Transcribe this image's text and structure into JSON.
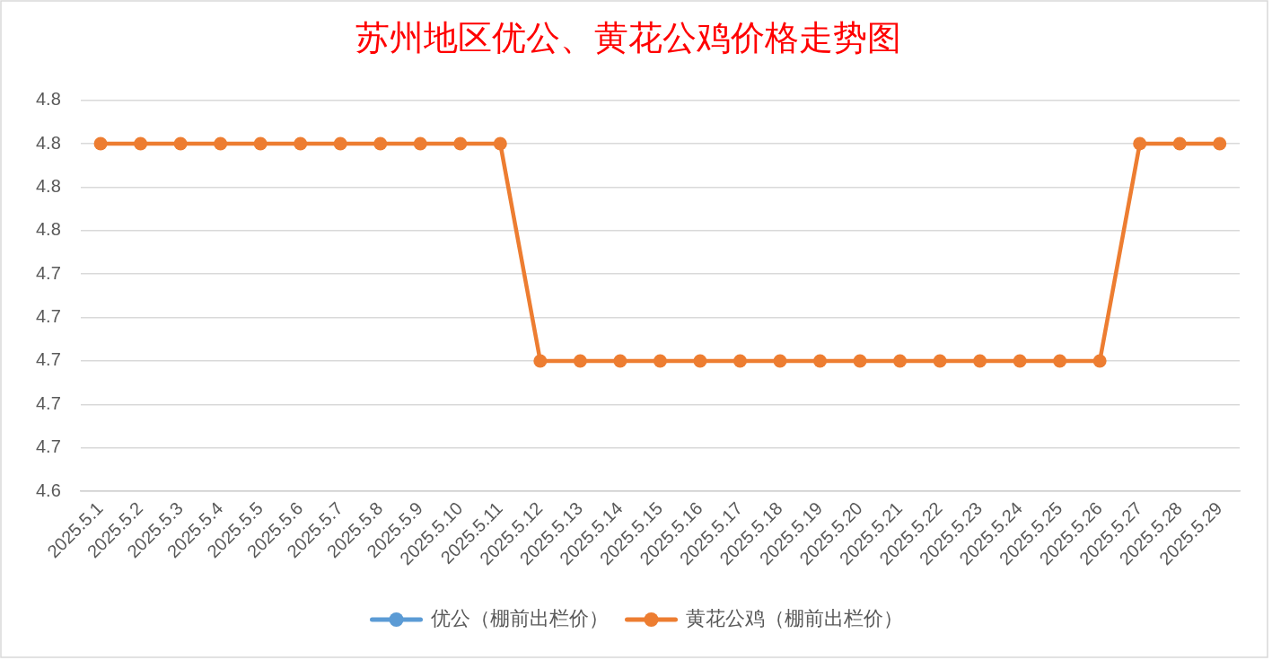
{
  "chart_data": {
    "type": "line",
    "title": "苏州地区优公、黄花公鸡价格走势图",
    "categories": [
      "2025.5.1",
      "2025.5.2",
      "2025.5.3",
      "2025.5.4",
      "2025.5.5",
      "2025.5.6",
      "2025.5.7",
      "2025.5.8",
      "2025.5.9",
      "2025.5.10",
      "2025.5.11",
      "2025.5.12",
      "2025.5.13",
      "2025.5.14",
      "2025.5.15",
      "2025.5.16",
      "2025.5.17",
      "2025.5.18",
      "2025.5.19",
      "2025.5.20",
      "2025.5.21",
      "2025.5.22",
      "2025.5.23",
      "2025.5.24",
      "2025.5.25",
      "2025.5.26",
      "2025.5.27",
      "2025.5.28",
      "2025.5.29"
    ],
    "series": [
      {
        "name": "优公（棚前出栏价）",
        "color": "#5b9bd5",
        "values": [
          null,
          null,
          null,
          null,
          null,
          null,
          null,
          null,
          null,
          null,
          null,
          null,
          null,
          null,
          null,
          null,
          null,
          null,
          null,
          null,
          null,
          null,
          null,
          null,
          null,
          null,
          null,
          null,
          null
        ]
      },
      {
        "name": "黄花公鸡（棚前出栏价）",
        "color": "#ed7d31",
        "values": [
          4.8,
          4.8,
          4.8,
          4.8,
          4.8,
          4.8,
          4.8,
          4.8,
          4.8,
          4.8,
          4.8,
          4.7,
          4.7,
          4.7,
          4.7,
          4.7,
          4.7,
          4.7,
          4.7,
          4.7,
          4.7,
          4.7,
          4.7,
          4.7,
          4.7,
          4.7,
          4.8,
          4.8,
          4.8
        ]
      }
    ],
    "ylim": [
      4.64,
      4.82
    ],
    "yticks": [
      {
        "value": 4.64,
        "label": "4.6"
      },
      {
        "value": 4.66,
        "label": "4.7"
      },
      {
        "value": 4.68,
        "label": "4.7"
      },
      {
        "value": 4.7,
        "label": "4.7"
      },
      {
        "value": 4.72,
        "label": "4.7"
      },
      {
        "value": 4.74,
        "label": "4.7"
      },
      {
        "value": 4.76,
        "label": "4.8"
      },
      {
        "value": 4.78,
        "label": "4.8"
      },
      {
        "value": 4.8,
        "label": "4.8"
      },
      {
        "value": 4.82,
        "label": "4.8"
      }
    ],
    "grid": "y",
    "legend": "bottom",
    "marker": "circle",
    "line_style": "solid"
  }
}
